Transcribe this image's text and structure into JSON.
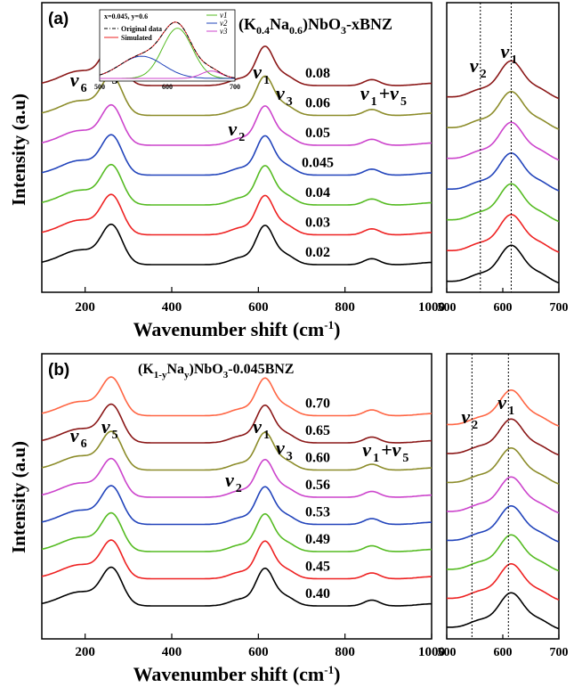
{
  "chart_data": [
    {
      "panel": "(a)",
      "type": "line",
      "formula_main": "(K",
      "formula_k_sub": "0.4",
      "formula_na": "Na",
      "formula_na_sub": "0.6",
      "formula_nbo": ")NbO",
      "formula_o_sub": "3",
      "formula_tail": "-xBNZ",
      "xlabel": "Wavenumber shift (cm",
      "xlabel_sup": "-1",
      "xlabel_close": ")",
      "ylabel": "Intensity (a.u)",
      "x_ticks": [
        "200",
        "400",
        "600",
        "800",
        "1000"
      ],
      "xlim": [
        100,
        1000
      ],
      "series": [
        {
          "label": "0.02",
          "color": "#000000"
        },
        {
          "label": "0.03",
          "color": "#ee2222"
        },
        {
          "label": "0.04",
          "color": "#55bb22"
        },
        {
          "label": "0.045",
          "color": "#2244bb"
        },
        {
          "label": "0.05",
          "color": "#cc44cc"
        },
        {
          "label": "0.06",
          "color": "#8c8c2a"
        },
        {
          "label": "0.08",
          "color": "#8b1818"
        }
      ],
      "peaks": [
        {
          "pos": 190,
          "prefix": "ν",
          "sub": "6"
        },
        {
          "pos": 262,
          "prefix": "ν",
          "sub": "5"
        },
        {
          "pos": 555,
          "prefix": "ν",
          "sub": "2"
        },
        {
          "pos": 612,
          "prefix": "ν",
          "sub": "1"
        },
        {
          "pos": 665,
          "prefix": "ν",
          "sub": "3"
        },
        {
          "pos": 860,
          "prefix": "ν",
          "sub": "1",
          "plus": "+ν",
          "sub2": "5"
        }
      ],
      "inset": {
        "caption": "x=0.045, y=0.6",
        "legend": [
          "Original data",
          "Simulated"
        ],
        "components": [
          "ν1",
          "ν2",
          "ν3"
        ],
        "x_ticks": [
          "500",
          "600",
          "700"
        ],
        "xlim": [
          500,
          700
        ]
      },
      "zoom": {
        "x_ticks": [
          "500",
          "600",
          "700"
        ],
        "xlim": [
          500,
          700
        ],
        "markers": [
          {
            "x": 560,
            "prefix": "ν",
            "sub": "2"
          },
          {
            "x": 615,
            "prefix": "ν",
            "sub": "1"
          }
        ]
      }
    },
    {
      "panel": "(b)",
      "type": "line",
      "formula_main": "(K",
      "formula_k_sub": "1-y",
      "formula_na": "Na",
      "formula_na_sub": "y",
      "formula_nbo": ")NbO",
      "formula_o_sub": "3",
      "formula_tail": "-0.045BNZ",
      "xlabel": "Wavenumber shift (cm",
      "xlabel_sup": "-1",
      "xlabel_close": ")",
      "ylabel": "Intensity (a.u)",
      "x_ticks": [
        "200",
        "400",
        "600",
        "800",
        "1000"
      ],
      "xlim": [
        100,
        1000
      ],
      "series": [
        {
          "label": "0.40",
          "color": "#000000"
        },
        {
          "label": "0.45",
          "color": "#ee2222"
        },
        {
          "label": "0.49",
          "color": "#55bb22"
        },
        {
          "label": "0.53",
          "color": "#2244bb"
        },
        {
          "label": "0.56",
          "color": "#cc44cc"
        },
        {
          "label": "0.60",
          "color": "#8c8c2a"
        },
        {
          "label": "0.65",
          "color": "#8b1818"
        },
        {
          "label": "0.70",
          "color": "#ff6644"
        }
      ],
      "peaks": [
        {
          "pos": 190,
          "prefix": "ν",
          "sub": "6"
        },
        {
          "pos": 262,
          "prefix": "ν",
          "sub": "5"
        },
        {
          "pos": 548,
          "prefix": "ν",
          "sub": "2"
        },
        {
          "pos": 612,
          "prefix": "ν",
          "sub": "1"
        },
        {
          "pos": 665,
          "prefix": "ν",
          "sub": "3"
        },
        {
          "pos": 865,
          "prefix": "ν",
          "sub": "1",
          "plus": "+ν",
          "sub2": "5"
        }
      ],
      "zoom": {
        "x_ticks": [
          "500",
          "600",
          "700"
        ],
        "xlim": [
          500,
          700
        ],
        "markers": [
          {
            "x": 545,
            "prefix": "ν",
            "sub": "2"
          },
          {
            "x": 610,
            "prefix": "ν",
            "sub": "1"
          }
        ]
      }
    }
  ]
}
